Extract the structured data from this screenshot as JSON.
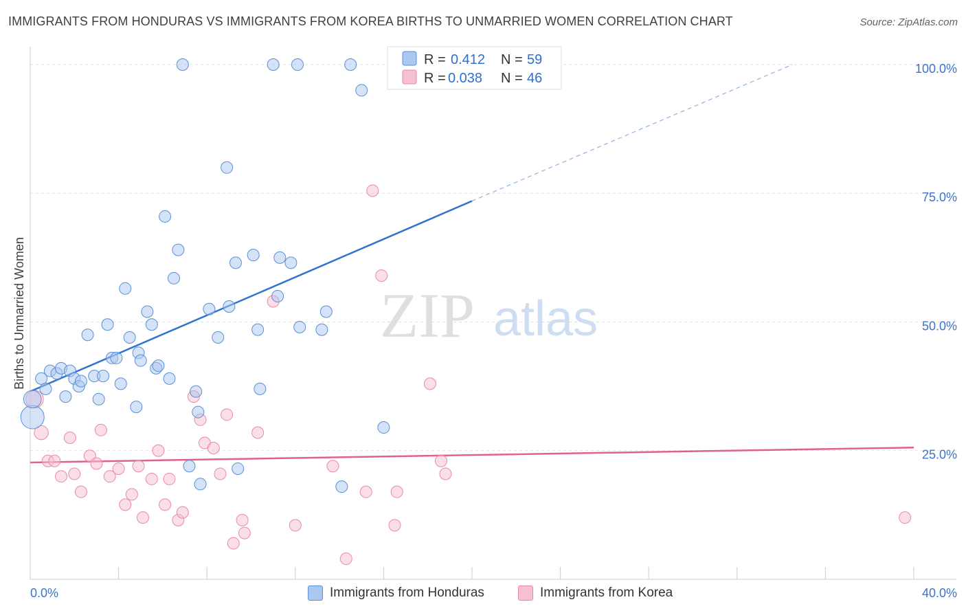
{
  "header": {
    "title": "IMMIGRANTS FROM HONDURAS VS IMMIGRANTS FROM KOREA BIRTHS TO UNMARRIED WOMEN CORRELATION CHART",
    "source": "Source: ZipAtlas.com"
  },
  "watermark": {
    "zip": "ZIP",
    "atlas": "atlas"
  },
  "colors": {
    "honduras_fill": "#aac8f0",
    "honduras_stroke": "#5b8fd6",
    "honduras_line": "#2f72d0",
    "korea_fill": "#f6c0d0",
    "korea_stroke": "#e88aa6",
    "korea_line": "#e0628c",
    "grid": "#dddddd",
    "tick_label": "#3b73c9"
  },
  "legend": {
    "r_label": "R =",
    "n_label": "N =",
    "rows": [
      {
        "r": "0.412",
        "n": "59"
      },
      {
        "r": "0.038",
        "n": "46"
      }
    ]
  },
  "chart_data": {
    "type": "scatter",
    "xlabel": "",
    "ylabel": "Births to Unmarried Women",
    "xlim": [
      0,
      40
    ],
    "ylim": [
      0,
      102
    ],
    "x_tick_labels": {
      "min": "0.0%",
      "max": "40.0%"
    },
    "y_ticks": [
      {
        "value": 25,
        "label": "25.0%"
      },
      {
        "value": 50,
        "label": "50.0%"
      },
      {
        "value": 75,
        "label": "75.0%"
      },
      {
        "value": 100,
        "label": "100.0%"
      }
    ],
    "series": [
      {
        "name": "Immigrants from Honduras",
        "r": 0.412,
        "n": 59,
        "trend": {
          "x_start": 0,
          "y_start": 36.5,
          "x_solid_end": 20,
          "y_solid_end": 73.5,
          "x_dash_end": 34.5,
          "y_dash_end": 100
        },
        "points": [
          [
            0.1,
            31.5,
            2
          ],
          [
            0.1,
            35,
            1.5
          ],
          [
            0.5,
            39,
            1
          ],
          [
            0.7,
            37,
            1
          ],
          [
            0.9,
            40.5,
            1
          ],
          [
            1.2,
            40,
            1
          ],
          [
            1.4,
            41,
            1
          ],
          [
            1.6,
            35.5,
            1
          ],
          [
            1.8,
            40.5,
            1
          ],
          [
            2.0,
            39,
            1
          ],
          [
            2.2,
            37.5,
            1
          ],
          [
            2.3,
            38.5,
            1
          ],
          [
            2.6,
            47.5,
            1
          ],
          [
            2.9,
            39.5,
            1
          ],
          [
            3.1,
            35,
            1
          ],
          [
            3.3,
            39.5,
            1
          ],
          [
            3.5,
            49.5,
            1
          ],
          [
            3.7,
            43,
            1
          ],
          [
            3.9,
            43,
            1
          ],
          [
            4.1,
            38,
            1
          ],
          [
            4.3,
            56.5,
            1
          ],
          [
            4.5,
            47,
            1
          ],
          [
            4.8,
            33.5,
            1
          ],
          [
            4.9,
            44,
            1
          ],
          [
            5.0,
            42.5,
            1
          ],
          [
            5.3,
            52,
            1
          ],
          [
            5.5,
            49.5,
            1
          ],
          [
            5.7,
            41,
            1
          ],
          [
            5.8,
            41.5,
            1
          ],
          [
            6.1,
            70.5,
            1
          ],
          [
            6.3,
            39,
            1
          ],
          [
            6.5,
            58.5,
            1
          ],
          [
            6.7,
            64,
            1
          ],
          [
            6.9,
            100,
            1
          ],
          [
            7.2,
            22,
            1
          ],
          [
            7.5,
            36.5,
            1
          ],
          [
            7.6,
            32.5,
            1
          ],
          [
            7.7,
            18.5,
            1
          ],
          [
            8.1,
            52.5,
            1
          ],
          [
            8.5,
            47,
            1
          ],
          [
            8.9,
            80,
            1
          ],
          [
            9.0,
            53,
            1
          ],
          [
            9.3,
            61.5,
            1
          ],
          [
            9.4,
            21.5,
            1
          ],
          [
            10.1,
            63,
            1
          ],
          [
            10.3,
            48.5,
            1
          ],
          [
            10.4,
            37,
            1
          ],
          [
            11.0,
            100,
            1
          ],
          [
            11.2,
            55,
            1
          ],
          [
            11.3,
            62.5,
            1
          ],
          [
            11.8,
            61.5,
            1
          ],
          [
            12.1,
            100,
            1
          ],
          [
            12.2,
            49,
            1
          ],
          [
            13.2,
            48.5,
            1
          ],
          [
            13.4,
            52,
            1
          ],
          [
            14.1,
            18,
            1
          ],
          [
            14.5,
            100,
            1
          ],
          [
            15.0,
            95,
            1
          ],
          [
            16.0,
            29.5,
            1
          ]
        ]
      },
      {
        "name": "Immigrants from Korea",
        "r": 0.038,
        "n": 46,
        "trend": {
          "x_start": 0,
          "y_start": 22.7,
          "x_end": 40,
          "y_end": 25.6
        },
        "points": [
          [
            0.2,
            35,
            1.5
          ],
          [
            0.5,
            28.5,
            1.2
          ],
          [
            0.8,
            23,
            1
          ],
          [
            1.1,
            23,
            1
          ],
          [
            1.4,
            20,
            1
          ],
          [
            1.8,
            27.5,
            1
          ],
          [
            2.0,
            20.5,
            1
          ],
          [
            2.3,
            17,
            1
          ],
          [
            2.7,
            24,
            1
          ],
          [
            3.0,
            22.5,
            1
          ],
          [
            3.2,
            29,
            1
          ],
          [
            3.6,
            20,
            1
          ],
          [
            4.0,
            21.5,
            1
          ],
          [
            4.3,
            14.5,
            1
          ],
          [
            4.6,
            16.5,
            1
          ],
          [
            4.9,
            22,
            1
          ],
          [
            5.1,
            12,
            1
          ],
          [
            5.5,
            19.5,
            1
          ],
          [
            5.8,
            25,
            1
          ],
          [
            6.1,
            14.5,
            1
          ],
          [
            6.3,
            19.5,
            1
          ],
          [
            6.7,
            11.5,
            1
          ],
          [
            6.9,
            13,
            1
          ],
          [
            7.4,
            35.5,
            1
          ],
          [
            7.7,
            31,
            1
          ],
          [
            7.9,
            26.5,
            1
          ],
          [
            8.3,
            25.5,
            1
          ],
          [
            8.6,
            20.5,
            1
          ],
          [
            8.9,
            32,
            1
          ],
          [
            9.2,
            7,
            1
          ],
          [
            9.6,
            11.5,
            1
          ],
          [
            9.7,
            9,
            1
          ],
          [
            10.3,
            28.5,
            1
          ],
          [
            11.0,
            54,
            1
          ],
          [
            12.0,
            10.5,
            1
          ],
          [
            13.7,
            22,
            1
          ],
          [
            14.3,
            4,
            1
          ],
          [
            15.2,
            17,
            1
          ],
          [
            15.5,
            75.5,
            1
          ],
          [
            15.9,
            59,
            1
          ],
          [
            16.5,
            10.5,
            1
          ],
          [
            16.6,
            17,
            1
          ],
          [
            18.1,
            38,
            1
          ],
          [
            18.6,
            23,
            1
          ],
          [
            18.8,
            20.5,
            1
          ],
          [
            39.6,
            12,
            1
          ]
        ]
      }
    ]
  }
}
